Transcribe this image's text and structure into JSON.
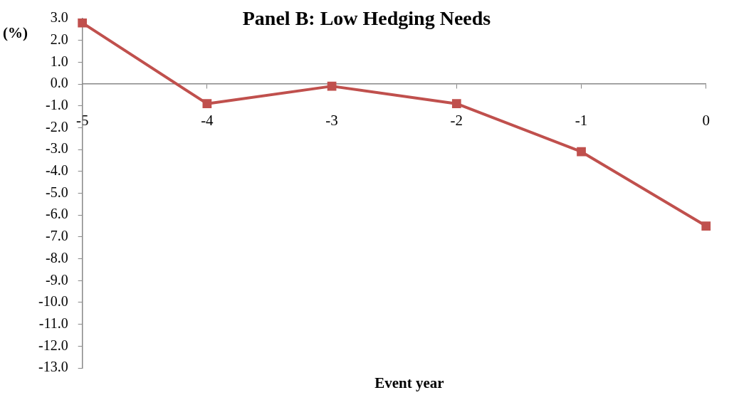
{
  "chart_data": {
    "type": "line",
    "title": "Panel B: Low Hedging Needs",
    "xlabel": "Event year",
    "ylabel": "(%)",
    "categories": [
      "-5",
      "-4",
      "-3",
      "-2",
      "-1",
      "0"
    ],
    "series": [
      {
        "color": "#c0504d",
        "values": [
          2.8,
          -0.9,
          -0.1,
          -0.9,
          -3.1,
          -6.5
        ]
      }
    ],
    "ylim": [
      -13,
      3
    ],
    "yticks": [
      {
        "value": 3,
        "label": "3.0"
      },
      {
        "value": 2,
        "label": "2.0"
      },
      {
        "value": 1,
        "label": "1.0"
      },
      {
        "value": 0,
        "label": "0.0"
      },
      {
        "value": -1,
        "label": "-1.0"
      },
      {
        "value": -2,
        "label": "-2.0"
      },
      {
        "value": -3,
        "label": "-3.0"
      },
      {
        "value": -4,
        "label": "-4.0"
      },
      {
        "value": -5,
        "label": "-5.0"
      },
      {
        "value": -6,
        "label": "-6.0"
      },
      {
        "value": -7,
        "label": "-7.0"
      },
      {
        "value": -8,
        "label": "-8.0"
      },
      {
        "value": -9,
        "label": "-9.0"
      },
      {
        "value": -10,
        "label": "-10.0"
      },
      {
        "value": -11,
        "label": "-11.0"
      },
      {
        "value": -12,
        "label": "-12.0"
      },
      {
        "value": -13,
        "label": "-13.0"
      }
    ],
    "grid": false,
    "legend": false,
    "marker": "square",
    "line_style": "solid"
  }
}
